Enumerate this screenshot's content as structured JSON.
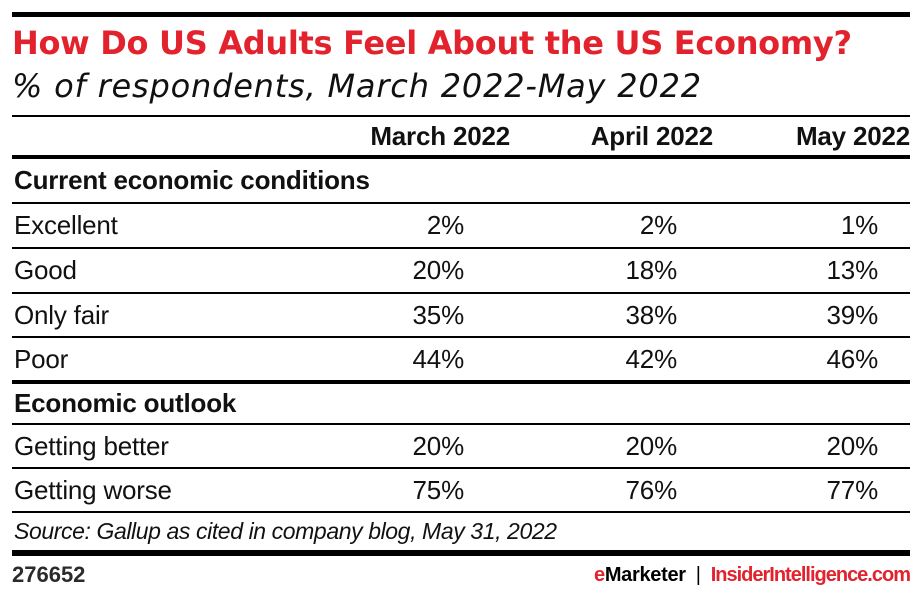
{
  "title": "How Do US Adults Feel About the US Economy?",
  "subtitle": "% of respondents, March 2022-May 2022",
  "chart_data": {
    "type": "table",
    "columns": [
      "March 2022",
      "April 2022",
      "May 2022"
    ],
    "sections": [
      {
        "header": "Current economic conditions",
        "rows": [
          {
            "label": "Excellent",
            "values": [
              "2%",
              "2%",
              "1%"
            ]
          },
          {
            "label": "Good",
            "values": [
              "20%",
              "18%",
              "13%"
            ]
          },
          {
            "label": "Only fair",
            "values": [
              "35%",
              "38%",
              "39%"
            ]
          },
          {
            "label": "Poor",
            "values": [
              "44%",
              "42%",
              "46%"
            ]
          }
        ]
      },
      {
        "header": "Economic outlook",
        "rows": [
          {
            "label": "Getting better",
            "values": [
              "20%",
              "20%",
              "20%"
            ]
          },
          {
            "label": "Getting worse",
            "values": [
              "75%",
              "76%",
              "77%"
            ]
          }
        ]
      }
    ],
    "source": "Source: Gallup as cited in company blog, May 31, 2022"
  },
  "footer": {
    "chart_id": "276652",
    "brand_e": "e",
    "brand_rest": "Marketer",
    "separator": "|",
    "site": "InsiderIntelligence.com"
  },
  "colors": {
    "accent_red": "#e2222d",
    "line_black": "#000000"
  }
}
